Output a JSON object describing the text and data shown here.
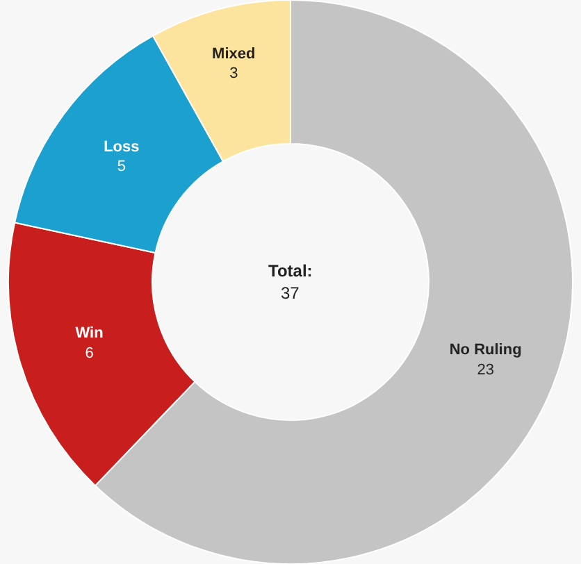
{
  "chart_data": {
    "type": "donut",
    "categories": [
      "No Ruling",
      "Win",
      "Loss",
      "Mixed"
    ],
    "values": [
      23,
      6,
      5,
      3
    ],
    "colors": [
      "#c4c4c4",
      "#c81e1e",
      "#1ba0cf",
      "#fde49e"
    ],
    "data_labels": true,
    "annotations": [
      "Total:",
      "37"
    ],
    "legend": false
  }
}
